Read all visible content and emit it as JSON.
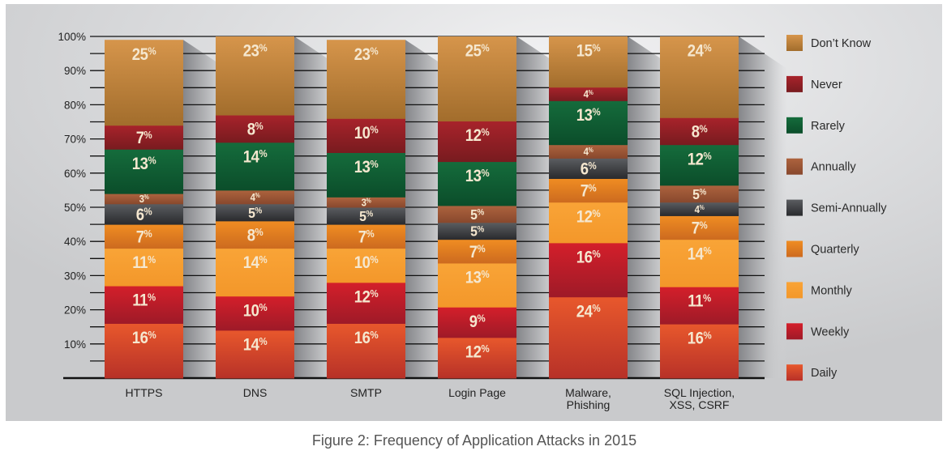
{
  "chart_data": {
    "type": "bar",
    "stacked": true,
    "title": "Figure 2: Frequency of Application Attacks in 2015",
    "xlabel": "",
    "ylabel": "",
    "ylim": [
      0,
      100
    ],
    "value_suffix": "%",
    "grid": true,
    "legend_position": "right",
    "y_ticks": [
      "10%",
      "20%",
      "30%",
      "40%",
      "50%",
      "60%",
      "70%",
      "80%",
      "90%",
      "100%"
    ],
    "y_tick_values": [
      10,
      20,
      30,
      40,
      50,
      60,
      70,
      80,
      90,
      100
    ],
    "categories": [
      "HTTPS",
      "DNS",
      "SMTP",
      "Login Page",
      "Malware, Phishing",
      "SQL Injection, XSS, CSRF"
    ],
    "series": [
      {
        "name": "Daily",
        "values": [
          16,
          14,
          16,
          12,
          24,
          16
        ],
        "color_top": "#e8582c",
        "color_bottom": "#b73128"
      },
      {
        "name": "Weekly",
        "values": [
          11,
          10,
          12,
          9,
          16,
          11
        ],
        "color_top": "#d41f2a",
        "color_bottom": "#9e1a28"
      },
      {
        "name": "Monthly",
        "values": [
          11,
          14,
          10,
          13,
          12,
          14
        ],
        "color_top": "#f9a437",
        "color_bottom": "#f3972a"
      },
      {
        "name": "Quarterly",
        "values": [
          7,
          8,
          7,
          7,
          7,
          7
        ],
        "color_top": "#f08d22",
        "color_bottom": "#cc6a1f"
      },
      {
        "name": "Semi-Annually",
        "values": [
          6,
          5,
          5,
          5,
          6,
          4
        ],
        "color_top": "#5b5d61",
        "color_bottom": "#292a2d"
      },
      {
        "name": "Annually",
        "values": [
          3,
          4,
          3,
          5,
          4,
          5
        ],
        "color_top": "#ad633e",
        "color_bottom": "#88482d"
      },
      {
        "name": "Rarely",
        "values": [
          13,
          14,
          13,
          13,
          13,
          12
        ],
        "color_top": "#156c3c",
        "color_bottom": "#0b4d2a"
      },
      {
        "name": "Never",
        "values": [
          7,
          8,
          10,
          12,
          4,
          8
        ],
        "color_top": "#a8232b",
        "color_bottom": "#781b1f"
      },
      {
        "name": "Don’t Know",
        "values": [
          25,
          23,
          23,
          25,
          15,
          24
        ],
        "color_top": "#d6954b",
        "color_bottom": "#a26d2c"
      }
    ]
  }
}
